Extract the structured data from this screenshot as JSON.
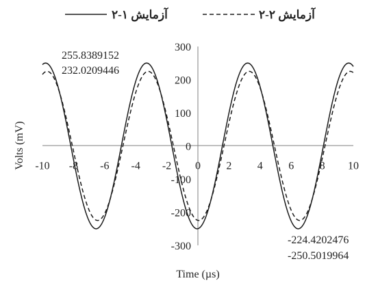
{
  "chart_data": {
    "type": "line",
    "title": "",
    "xlabel": "Time (µs)",
    "ylabel": "Volts (mV)",
    "xlim": [
      -10,
      10
    ],
    "ylim": [
      -300,
      300
    ],
    "x_ticks": [
      -10,
      -8,
      -6,
      -4,
      -2,
      0,
      2,
      4,
      6,
      8,
      10
    ],
    "y_ticks": [
      300,
      200,
      100,
      0,
      -100,
      -200,
      -300
    ],
    "grid": false,
    "legend_position": "top",
    "series": [
      {
        "name": "آزمایش ۱-۲",
        "style": "solid",
        "amplitude": 250,
        "period_us": 6.5,
        "peak_time_us": 3.2,
        "x": [
          -10,
          -9.5,
          -9,
          -8.5,
          -8,
          -7.5,
          -7,
          -6.5,
          -6,
          -5.5,
          -5,
          -4.5,
          -4,
          -3.5,
          -3,
          -2.5,
          -2,
          -1.5,
          -1,
          -0.5,
          0,
          0.5,
          1,
          1.5,
          2,
          2.5,
          3,
          3.5,
          4,
          4.5,
          5,
          5.5,
          6,
          6.5,
          7,
          7.5,
          8,
          8.5,
          9,
          9.5,
          10
        ],
        "values": [
          243,
          249,
          164,
          14,
          -141,
          -240,
          -239,
          -137,
          19,
          167,
          249,
          239,
          140,
          -14,
          -164,
          -248,
          -241,
          -146,
          9,
          160,
          246,
          243,
          151,
          -3,
          -155,
          -243,
          -248,
          -171,
          -22,
          132,
          235,
          250,
          175,
          29,
          -126,
          -232,
          -250,
          -185,
          -40,
          117,
          227
        ]
      },
      {
        "name": "آزمایش ۲-۲",
        "style": "dashed",
        "amplitude": 225,
        "period_us": 6.5,
        "peak_time_us": 3.3,
        "x": [
          -10,
          -9.5,
          -9,
          -8.5,
          -8,
          -7.5,
          -7,
          -6.5,
          -6,
          -5.5,
          -5,
          -4.5,
          -4,
          -3.5,
          -3,
          -2.5,
          -2,
          -1.5,
          -1,
          -0.5,
          0,
          0.5,
          1,
          1.5,
          2,
          2.5,
          3,
          3.5,
          4,
          4.5,
          5,
          5.5,
          6,
          6.5,
          7,
          7.5,
          8,
          8.5,
          9,
          9.5,
          10
        ],
        "values": [
          220,
          225,
          152,
          20,
          -118,
          -213,
          -222,
          -136,
          4,
          140,
          222,
          215,
          128,
          -13,
          -150,
          -224,
          -210,
          -116,
          27,
          162,
          228,
          206,
          100,
          -40,
          -170,
          -226,
          -197,
          -101,
          42,
          171,
          225,
          189,
          84,
          -56,
          -178,
          -225,
          -182,
          -70,
          70,
          187,
          222
        ]
      }
    ],
    "annotations": [
      {
        "text": "255.8389152",
        "anchor": "top-left"
      },
      {
        "text": "232.0209446",
        "anchor": "top-left"
      },
      {
        "text": "-224.4202476",
        "anchor": "bottom-right"
      },
      {
        "text": "-250.5019964",
        "anchor": "bottom-right"
      }
    ],
    "colors": {
      "axis": "#7f7f7f",
      "series": "#1a1a1a",
      "text": "#222222"
    }
  }
}
